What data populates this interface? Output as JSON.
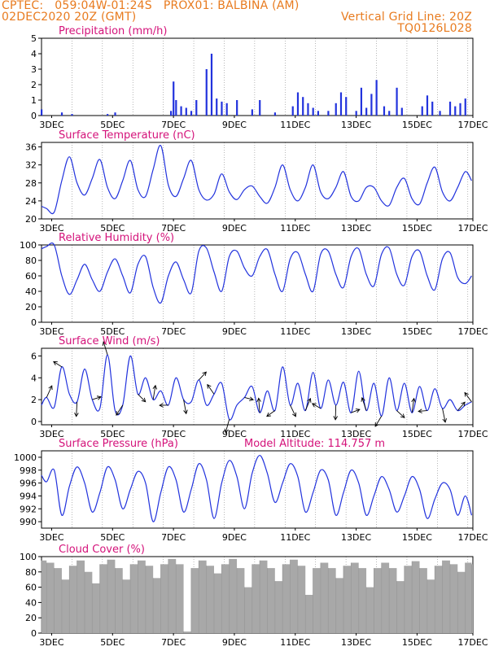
{
  "header": {
    "line1_left": "CPTEC:   059:04W-01:24S   PROX01: BALBINA (AM)",
    "line2_left": "02DEC2020 20Z (GMT)",
    "line2_right": "Vertical Grid Line: 20Z",
    "line3_right": "TQ0126L028"
  },
  "colors": {
    "header": "#e87b1f",
    "title": "#d4127a",
    "series": "#2233dd",
    "cloud": "#a8a8a8",
    "arrow": "#000000"
  },
  "chart_data": [
    {
      "type": "bar",
      "title": "Precipitation (mm/h)",
      "x": [
        "02DEC 20Z",
        "03DEC 12Z",
        "03DEC 20Z",
        "05DEC 00Z",
        "05DEC 06Z",
        "07DEC 02Z",
        "07DEC 04Z",
        "07DEC 06Z",
        "07DEC 10Z",
        "07DEC 14Z",
        "07DEC 18Z",
        "07DEC 22Z",
        "08DEC 06Z",
        "08DEC 10Z",
        "08DEC 14Z",
        "08DEC 18Z",
        "08DEC 22Z",
        "09DEC 06Z",
        "09DEC 18Z",
        "10DEC 00Z",
        "10DEC 12Z",
        "11DEC 02Z",
        "11DEC 06Z",
        "11DEC 10Z",
        "11DEC 14Z",
        "11DEC 18Z",
        "11DEC 22Z",
        "12DEC 06Z",
        "12DEC 12Z",
        "12DEC 16Z",
        "12DEC 20Z",
        "13DEC 04Z",
        "13DEC 08Z",
        "13DEC 12Z",
        "13DEC 16Z",
        "13DEC 20Z",
        "14DEC 02Z",
        "14DEC 06Z",
        "14DEC 12Z",
        "14DEC 16Z",
        "15DEC 08Z",
        "15DEC 12Z",
        "15DEC 16Z",
        "15DEC 22Z",
        "16DEC 06Z",
        "16DEC 10Z",
        "16DEC 14Z",
        "16DEC 18Z"
      ],
      "values": [
        0.4,
        0.2,
        0.1,
        0.1,
        0.2,
        0.3,
        2.2,
        1.0,
        0.6,
        0.5,
        0.3,
        1.0,
        3.0,
        4.0,
        1.1,
        0.9,
        0.8,
        1.0,
        0.4,
        1.0,
        0.2,
        0.6,
        1.5,
        1.2,
        0.8,
        0.5,
        0.3,
        0.3,
        0.8,
        1.5,
        1.2,
        0.3,
        1.8,
        0.5,
        1.4,
        2.3,
        0.6,
        0.3,
        1.8,
        0.5,
        0.6,
        1.3,
        0.9,
        0.3,
        0.9,
        0.6,
        0.8,
        1.1
      ],
      "ylim": [
        0,
        5
      ],
      "yticks": [
        0,
        1,
        2,
        3,
        4,
        5
      ]
    },
    {
      "type": "line",
      "title": "Surface Temperature (nC)",
      "x": [
        "02DEC 20Z",
        "03DEC 00Z",
        "03DEC 06Z",
        "03DEC 12Z",
        "03DEC 18Z",
        "04DEC 00Z",
        "04DEC 06Z",
        "04DEC 12Z",
        "04DEC 18Z",
        "05DEC 00Z",
        "05DEC 06Z",
        "05DEC 12Z",
        "05DEC 18Z",
        "06DEC 00Z",
        "06DEC 06Z",
        "06DEC 12Z",
        "06DEC 18Z",
        "07DEC 00Z",
        "07DEC 06Z",
        "07DEC 12Z",
        "07DEC 18Z",
        "08DEC 00Z",
        "08DEC 06Z",
        "08DEC 12Z",
        "08DEC 18Z",
        "09DEC 00Z",
        "09DEC 06Z",
        "09DEC 12Z",
        "09DEC 18Z",
        "10DEC 00Z",
        "10DEC 06Z",
        "10DEC 12Z",
        "10DEC 18Z",
        "11DEC 00Z",
        "11DEC 06Z",
        "11DEC 12Z",
        "11DEC 18Z",
        "12DEC 00Z",
        "12DEC 06Z",
        "12DEC 12Z",
        "12DEC 18Z",
        "13DEC 00Z",
        "13DEC 06Z",
        "13DEC 12Z",
        "13DEC 18Z",
        "14DEC 00Z",
        "14DEC 06Z",
        "14DEC 12Z",
        "14DEC 18Z",
        "15DEC 00Z",
        "15DEC 06Z",
        "15DEC 12Z",
        "15DEC 18Z",
        "16DEC 00Z",
        "16DEC 06Z",
        "16DEC 12Z",
        "16DEC 18Z",
        "16DEC 23Z"
      ],
      "values": [
        22.8,
        22.3,
        21.5,
        28.5,
        33.8,
        28.0,
        25.3,
        29.0,
        33.2,
        27.0,
        24.5,
        28.5,
        33.0,
        26.5,
        25.0,
        31.0,
        36.3,
        27.5,
        25.0,
        29.0,
        33.0,
        26.5,
        24.2,
        25.5,
        30.0,
        26.0,
        24.3,
        26.5,
        27.3,
        25.0,
        23.5,
        27.0,
        32.0,
        26.5,
        24.0,
        27.0,
        32.0,
        26.0,
        24.5,
        27.0,
        30.5,
        25.0,
        24.0,
        27.0,
        27.0,
        24.0,
        23.0,
        27.0,
        29.0,
        24.5,
        23.3,
        28.0,
        31.5,
        26.0,
        24.0,
        27.0,
        30.5,
        28.5
      ],
      "ylim": [
        20,
        37
      ],
      "yticks": [
        20,
        24,
        28,
        32,
        36
      ]
    },
    {
      "type": "line",
      "title": "Relative Humidity (%)",
      "x": [
        "02DEC 20Z",
        "03DEC 00Z",
        "03DEC 06Z",
        "03DEC 12Z",
        "03DEC 18Z",
        "04DEC 00Z",
        "04DEC 06Z",
        "04DEC 12Z",
        "04DEC 18Z",
        "05DEC 00Z",
        "05DEC 06Z",
        "05DEC 12Z",
        "05DEC 18Z",
        "06DEC 00Z",
        "06DEC 06Z",
        "06DEC 12Z",
        "06DEC 18Z",
        "07DEC 00Z",
        "07DEC 06Z",
        "07DEC 12Z",
        "07DEC 18Z",
        "08DEC 00Z",
        "08DEC 06Z",
        "08DEC 12Z",
        "08DEC 18Z",
        "09DEC 00Z",
        "09DEC 06Z",
        "09DEC 12Z",
        "09DEC 18Z",
        "10DEC 00Z",
        "10DEC 06Z",
        "10DEC 12Z",
        "10DEC 18Z",
        "11DEC 00Z",
        "11DEC 06Z",
        "11DEC 12Z",
        "11DEC 18Z",
        "12DEC 00Z",
        "12DEC 06Z",
        "12DEC 12Z",
        "12DEC 18Z",
        "13DEC 00Z",
        "13DEC 06Z",
        "13DEC 12Z",
        "13DEC 18Z",
        "14DEC 00Z",
        "14DEC 06Z",
        "14DEC 12Z",
        "14DEC 18Z",
        "15DEC 00Z",
        "15DEC 06Z",
        "15DEC 12Z",
        "15DEC 18Z",
        "16DEC 00Z",
        "16DEC 06Z",
        "16DEC 12Z",
        "16DEC 18Z",
        "16DEC 23Z"
      ],
      "values": [
        95,
        98,
        100,
        60,
        36,
        55,
        75,
        55,
        40,
        65,
        82,
        60,
        38,
        75,
        85,
        45,
        25,
        60,
        78,
        55,
        38,
        92,
        96,
        65,
        40,
        85,
        92,
        70,
        60,
        85,
        94,
        62,
        40,
        82,
        90,
        62,
        40,
        88,
        92,
        62,
        45,
        85,
        95,
        62,
        47,
        88,
        96,
        62,
        48,
        85,
        92,
        60,
        42,
        82,
        90,
        58,
        50,
        60
      ],
      "ylim": [
        0,
        100
      ],
      "yticks": [
        0,
        20,
        40,
        60,
        80,
        100
      ]
    },
    {
      "type": "line",
      "title": "Surface Wind (m/s)",
      "x": [
        "02DEC 20Z",
        "03DEC 00Z",
        "03DEC 06Z",
        "03DEC 12Z",
        "03DEC 18Z",
        "04DEC 00Z",
        "04DEC 06Z",
        "04DEC 12Z",
        "04DEC 18Z",
        "05DEC 00Z",
        "05DEC 06Z",
        "05DEC 12Z",
        "05DEC 18Z",
        "06DEC 00Z",
        "06DEC 06Z",
        "06DEC 12Z",
        "06DEC 18Z",
        "07DEC 00Z",
        "07DEC 06Z",
        "07DEC 12Z",
        "07DEC 18Z",
        "08DEC 00Z",
        "08DEC 06Z",
        "08DEC 12Z",
        "08DEC 18Z",
        "09DEC 00Z",
        "09DEC 06Z",
        "09DEC 12Z",
        "09DEC 18Z",
        "10DEC 00Z",
        "10DEC 06Z",
        "10DEC 12Z",
        "10DEC 18Z",
        "11DEC 00Z",
        "11DEC 06Z",
        "11DEC 12Z",
        "11DEC 18Z",
        "12DEC 00Z",
        "12DEC 06Z",
        "12DEC 12Z",
        "12DEC 18Z",
        "13DEC 00Z",
        "13DEC 06Z",
        "13DEC 12Z",
        "13DEC 18Z",
        "14DEC 00Z",
        "14DEC 06Z",
        "14DEC 12Z",
        "14DEC 18Z",
        "15DEC 00Z",
        "15DEC 06Z",
        "15DEC 12Z",
        "15DEC 18Z",
        "16DEC 00Z",
        "16DEC 06Z",
        "16DEC 12Z",
        "16DEC 18Z",
        "16DEC 23Z"
      ],
      "values": [
        1.5,
        2.2,
        1.3,
        5.0,
        2.5,
        1.8,
        4.8,
        2.0,
        1.2,
        6.1,
        1.0,
        1.5,
        6.0,
        2.5,
        4.0,
        2.0,
        2.8,
        1.5,
        4.0,
        2.0,
        1.8,
        3.8,
        1.5,
        2.5,
        3.5,
        0.2,
        1.5,
        2.2,
        3.2,
        0.8,
        2.8,
        1.0,
        5.0,
        1.5,
        3.5,
        1.0,
        4.5,
        1.2,
        3.8,
        1.5,
        3.6,
        0.8,
        4.6,
        1.0,
        3.5,
        0.5,
        4.0,
        1.0,
        3.5,
        0.8,
        3.2,
        1.0,
        3.0,
        1.2,
        2.0,
        1.0,
        1.5,
        1.8
      ],
      "ylim": [
        -0.3,
        6.7
      ],
      "yticks": [
        0,
        2,
        4,
        6
      ],
      "direction_arrows": true
    },
    {
      "type": "line",
      "title": "Surface Pressure (hPa)",
      "annotation": "Model Altitude: 114.757 m",
      "x": [
        "02DEC 20Z",
        "03DEC 00Z",
        "03DEC 06Z",
        "03DEC 12Z",
        "03DEC 18Z",
        "04DEC 00Z",
        "04DEC 06Z",
        "04DEC 12Z",
        "04DEC 18Z",
        "05DEC 00Z",
        "05DEC 06Z",
        "05DEC 12Z",
        "05DEC 18Z",
        "06DEC 00Z",
        "06DEC 06Z",
        "06DEC 12Z",
        "06DEC 18Z",
        "07DEC 00Z",
        "07DEC 06Z",
        "07DEC 12Z",
        "07DEC 18Z",
        "08DEC 00Z",
        "08DEC 06Z",
        "08DEC 12Z",
        "08DEC 18Z",
        "09DEC 00Z",
        "09DEC 06Z",
        "09DEC 12Z",
        "09DEC 18Z",
        "10DEC 00Z",
        "10DEC 06Z",
        "10DEC 12Z",
        "10DEC 18Z",
        "11DEC 00Z",
        "11DEC 06Z",
        "11DEC 12Z",
        "11DEC 18Z",
        "12DEC 00Z",
        "12DEC 06Z",
        "12DEC 12Z",
        "12DEC 18Z",
        "13DEC 00Z",
        "13DEC 06Z",
        "13DEC 12Z",
        "13DEC 18Z",
        "14DEC 00Z",
        "14DEC 06Z",
        "14DEC 12Z",
        "14DEC 18Z",
        "15DEC 00Z",
        "15DEC 06Z",
        "15DEC 12Z",
        "15DEC 18Z",
        "16DEC 00Z",
        "16DEC 06Z",
        "16DEC 12Z",
        "16DEC 18Z",
        "16DEC 23Z"
      ],
      "values": [
        997.2,
        996.2,
        998.0,
        991.0,
        995.5,
        998.5,
        996.0,
        991.5,
        994.5,
        998.5,
        996.5,
        992.0,
        995.0,
        997.8,
        996.0,
        990.0,
        994.5,
        998.5,
        996.5,
        991.5,
        995.0,
        999.0,
        996.5,
        990.5,
        996.0,
        999.5,
        997.0,
        992.0,
        997.5,
        1000.3,
        997.5,
        993.0,
        996.0,
        999.0,
        997.0,
        991.5,
        994.5,
        998.0,
        996.5,
        991.0,
        994.5,
        998.0,
        996.0,
        991.0,
        994.0,
        997.0,
        995.0,
        991.5,
        994.0,
        997.0,
        995.0,
        990.5,
        993.5,
        996.0,
        995.0,
        991.0,
        994.0,
        991.0
      ],
      "ylim": [
        989,
        1001
      ],
      "yticks": [
        990,
        992,
        994,
        996,
        998,
        1000
      ]
    },
    {
      "type": "bar",
      "title": "Cloud Cover (%)",
      "x": [
        "02DEC 20Z",
        "03DEC 00Z",
        "03DEC 06Z",
        "03DEC 12Z",
        "03DEC 18Z",
        "04DEC 00Z",
        "04DEC 06Z",
        "04DEC 12Z",
        "04DEC 18Z",
        "05DEC 00Z",
        "05DEC 06Z",
        "05DEC 12Z",
        "05DEC 18Z",
        "06DEC 00Z",
        "06DEC 06Z",
        "06DEC 12Z",
        "06DEC 18Z",
        "07DEC 00Z",
        "07DEC 06Z",
        "07DEC 12Z",
        "07DEC 18Z",
        "08DEC 00Z",
        "08DEC 06Z",
        "08DEC 12Z",
        "08DEC 18Z",
        "09DEC 00Z",
        "09DEC 06Z",
        "09DEC 12Z",
        "09DEC 18Z",
        "10DEC 00Z",
        "10DEC 06Z",
        "10DEC 12Z",
        "10DEC 18Z",
        "11DEC 00Z",
        "11DEC 06Z",
        "11DEC 12Z",
        "11DEC 18Z",
        "12DEC 00Z",
        "12DEC 06Z",
        "12DEC 12Z",
        "12DEC 18Z",
        "13DEC 00Z",
        "13DEC 06Z",
        "13DEC 12Z",
        "13DEC 18Z",
        "14DEC 00Z",
        "14DEC 06Z",
        "14DEC 12Z",
        "14DEC 18Z",
        "15DEC 00Z",
        "15DEC 06Z",
        "15DEC 12Z",
        "15DEC 18Z",
        "16DEC 00Z",
        "16DEC 06Z",
        "16DEC 12Z",
        "16DEC 18Z",
        "16DEC 23Z"
      ],
      "values": [
        95,
        92,
        85,
        70,
        88,
        95,
        80,
        65,
        90,
        96,
        85,
        70,
        90,
        95,
        88,
        72,
        90,
        97,
        90,
        2,
        85,
        95,
        88,
        78,
        90,
        97,
        85,
        60,
        90,
        95,
        85,
        68,
        90,
        96,
        88,
        50,
        85,
        92,
        85,
        72,
        88,
        92,
        85,
        60,
        85,
        92,
        85,
        68,
        88,
        94,
        85,
        70,
        88,
        95,
        90,
        80,
        92,
        90
      ],
      "ylim": [
        0,
        100
      ],
      "yticks": [
        0,
        20,
        40,
        60,
        80,
        100
      ]
    }
  ],
  "x_axis": {
    "start": "02DEC 20Z",
    "end": "17DEC 00Z",
    "tick_labels": [
      "3DEC",
      "5DEC",
      "7DEC",
      "9DEC",
      "11DEC",
      "13DEC",
      "15DEC",
      "17DEC"
    ],
    "tick_days": [
      3,
      5,
      7,
      9,
      11,
      13,
      15,
      17
    ]
  }
}
